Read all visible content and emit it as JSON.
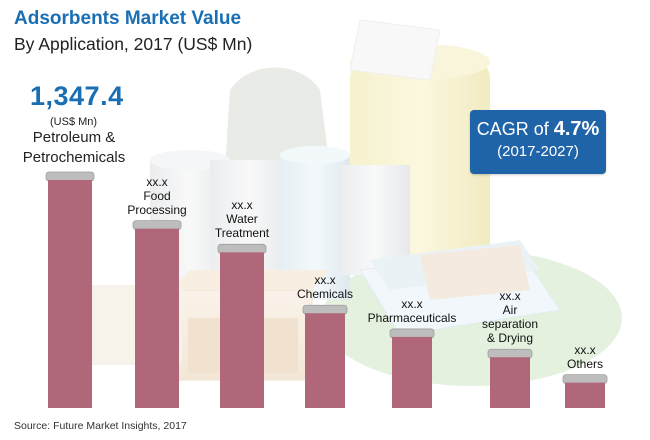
{
  "header": {
    "title": "Adsorbents Market Value",
    "subtitle": "By Application, 2017 (US$ Mn)"
  },
  "highlight": {
    "value": "1,347.4",
    "unit": "(US$ Mn)",
    "label_line1": "Petroleum &",
    "label_line2": "Petrochemicals"
  },
  "cagr": {
    "prefix": "CAGR of ",
    "value": "4.7%",
    "period": "(2017-2027)"
  },
  "source": "Source: Future Market Insights, 2017",
  "colors": {
    "bar": "#b06779",
    "cap": "#bdbdbd",
    "title": "#1a6fb4",
    "cagr_box": "#1f63a8"
  },
  "chart_data": {
    "type": "bar",
    "categories": [
      "Petroleum & Petrochemicals",
      "Food Processing",
      "Water Treatment",
      "Chemicals",
      "Pharmaceuticals",
      "Air separation & Drying",
      "Others"
    ],
    "values": [
      1347.4,
      1060,
      920,
      560,
      420,
      300,
      150
    ],
    "value_labels": [
      "1,347.4",
      "xx.x",
      "xx.x",
      "xx.x",
      "xx.x",
      "xx.x",
      "xx.x"
    ],
    "label_lines": [
      [],
      [
        "xx.x",
        "Food",
        "Processing"
      ],
      [
        "xx.x",
        "Water",
        "Treatment"
      ],
      [
        "xx.x",
        "Chemicals"
      ],
      [
        "xx.x",
        "Pharmaceuticals"
      ],
      [
        "xx.x",
        "Air",
        "separation",
        "& Drying"
      ],
      [
        "xx.x",
        "Others"
      ]
    ],
    "title": "Adsorbents Market Value",
    "subtitle": "By Application, 2017 (US$ Mn)",
    "ylim": [
      0,
      1347.4
    ],
    "grid": false,
    "legend": "none"
  }
}
